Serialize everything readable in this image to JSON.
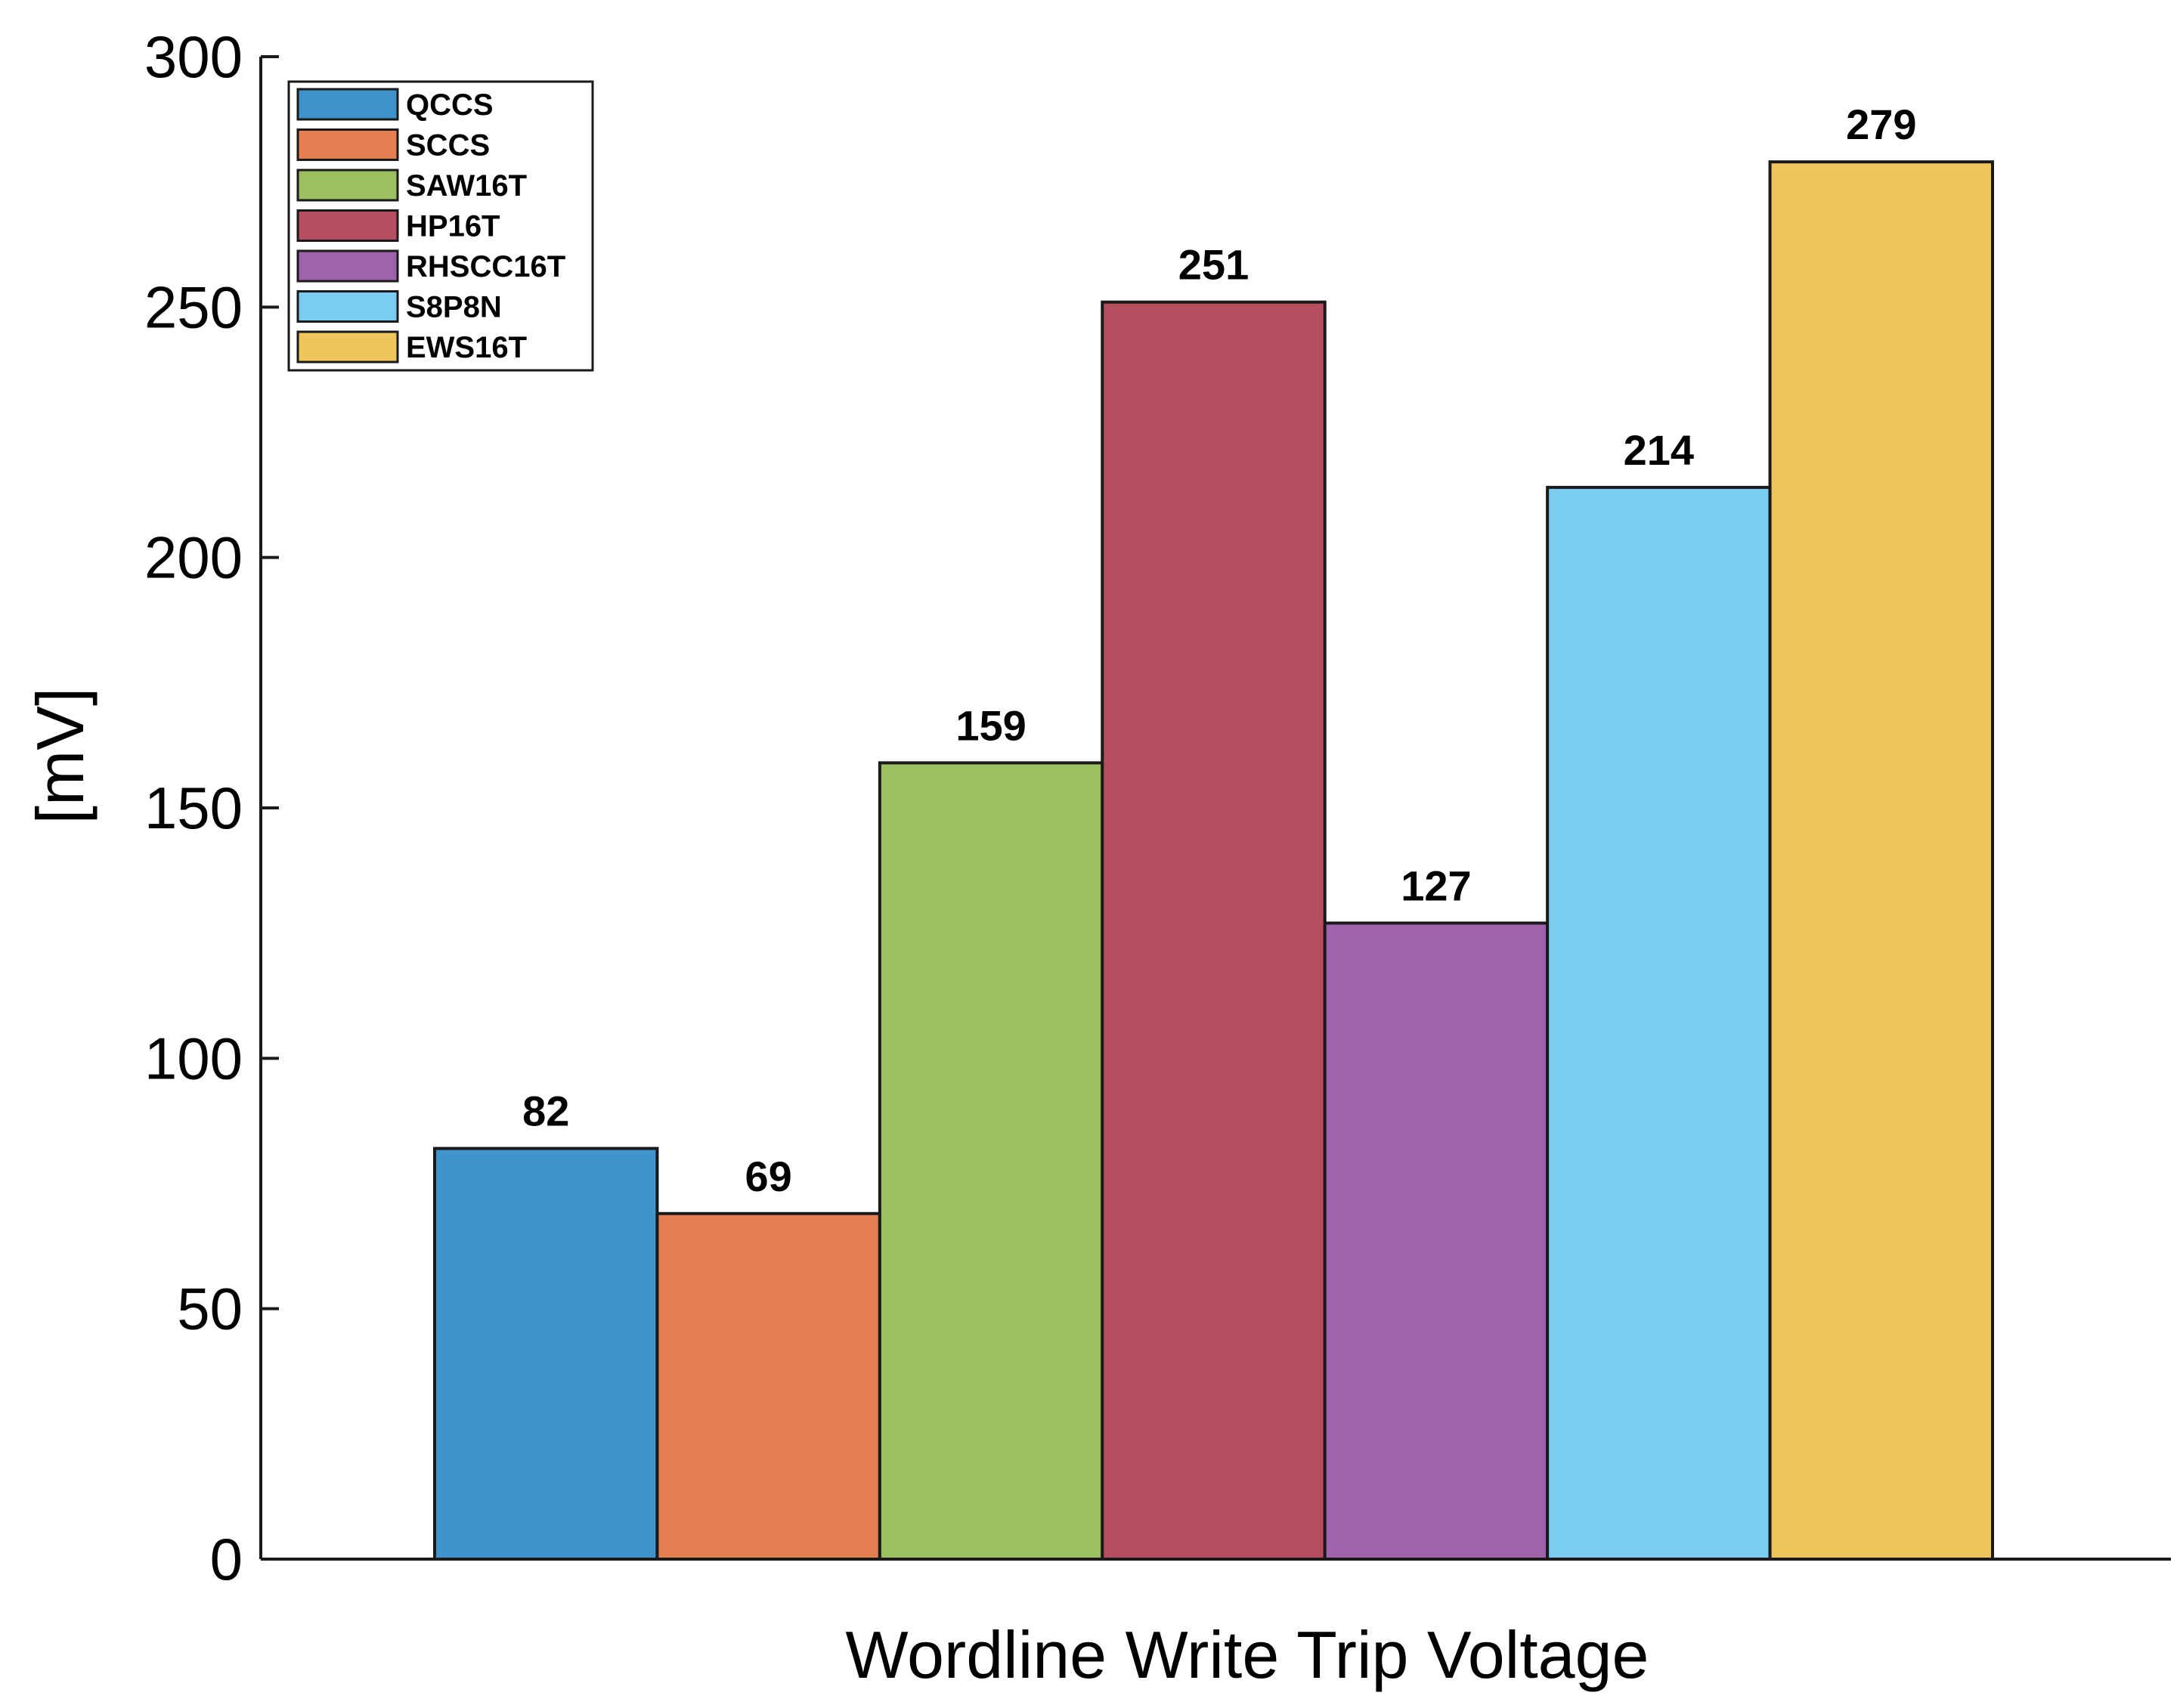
{
  "chart_data": {
    "type": "bar",
    "title": "",
    "xlabel": "Wordline Write Trip Voltage",
    "ylabel": "[mV]",
    "ylim": [
      0,
      300
    ],
    "yticks": [
      0,
      50,
      100,
      150,
      200,
      250,
      300
    ],
    "grid": false,
    "legend_position": "top-left",
    "series": [
      {
        "name": "QCCS",
        "value": 82,
        "color": "#4094CD",
        "data_label": "82"
      },
      {
        "name": "SCCS",
        "value": 69,
        "color": "#E37F51",
        "data_label": "69"
      },
      {
        "name": "SAW16T",
        "value": 159,
        "color": "#9BBF61",
        "data_label": "159"
      },
      {
        "name": "HP16T",
        "value": 251,
        "color": "#B74E5F",
        "data_label": "251"
      },
      {
        "name": "RHSCC16T",
        "value": 127,
        "color": "#9F63AE",
        "data_label": "127"
      },
      {
        "name": "S8P8N",
        "value": 214,
        "color": "#7ACCF0",
        "data_label": "214"
      },
      {
        "name": "EWS16T",
        "value": 279,
        "color": "#EEC55A",
        "data_label": "279"
      }
    ]
  }
}
